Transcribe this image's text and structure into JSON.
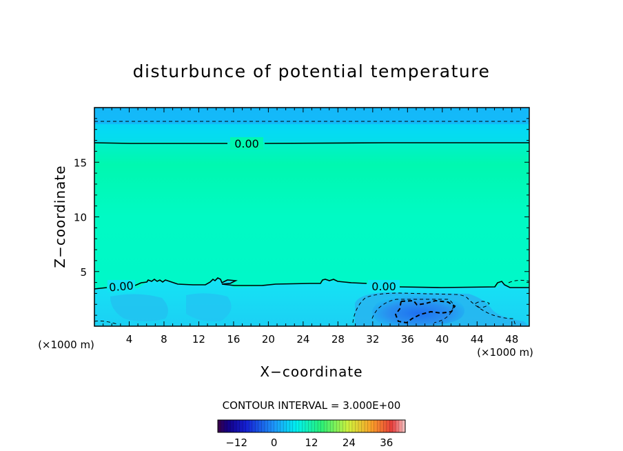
{
  "chart_data": {
    "type": "heatmap",
    "title": "disturbunce of potential temperature",
    "xlabel": "X−coordinate",
    "ylabel": "Z−coordinate",
    "x_unit": "(×1000 m)",
    "z_unit": "(×1000 m)",
    "xlim": [
      0,
      50
    ],
    "ylim": [
      0,
      20
    ],
    "x_ticks": [
      4,
      8,
      12,
      16,
      20,
      24,
      28,
      32,
      36,
      40,
      44,
      48
    ],
    "y_ticks": [
      5,
      10,
      15
    ],
    "contour_interval_text": "CONTOUR INTERVAL = 3.000E+00",
    "contour_labels": [
      "0.00",
      "0.00",
      "0.00"
    ],
    "zero_contour_upper_z": 16.8,
    "zero_contour_lower_z": 3.7,
    "negative_contour_upper_z": 18.7,
    "colorbar": {
      "min": -18,
      "max": 42,
      "ticks": [
        -12,
        0,
        12,
        24,
        36
      ],
      "tick_labels": [
        "−12",
        "0",
        "12",
        "24",
        "36"
      ]
    },
    "regions": [
      {
        "name": "upper-negative-layer",
        "z_range": [
          17.5,
          20
        ],
        "value": -4
      },
      {
        "name": "lower-cold-layer",
        "z_range": [
          0,
          3.7
        ],
        "value": -3
      },
      {
        "name": "cold-pool-core",
        "x_range": [
          33,
          42
        ],
        "z_range": [
          0,
          2.5
        ],
        "value": -7
      },
      {
        "name": "neutral-interior",
        "z_range": [
          3.7,
          16.8
        ],
        "value": 0
      }
    ]
  }
}
